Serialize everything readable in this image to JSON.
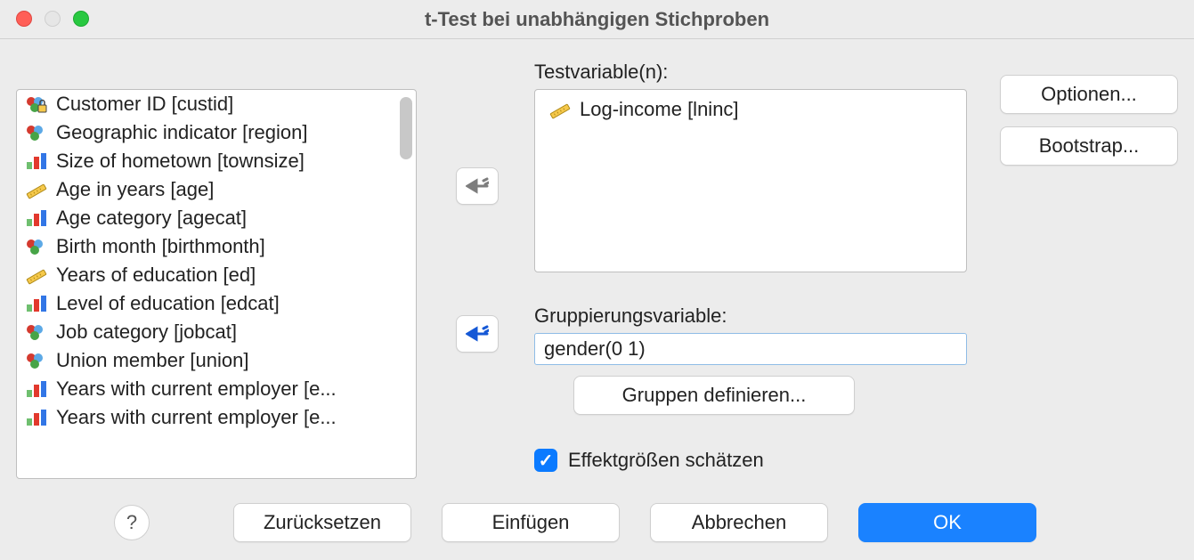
{
  "window": {
    "title": "t-Test bei unabhängigen Stichproben",
    "traffic_colors": {
      "close": "#ff5f57",
      "disabled": "#e6e6e6",
      "zoom": "#28c840"
    }
  },
  "labels": {
    "test_variables": "Testvariable(n):",
    "grouping_variable": "Gruppierungsvariable:",
    "effect_sizes": "Effektgrößen schätzen"
  },
  "source_variables": [
    {
      "icon": "nominal-locked",
      "label": "Customer ID [custid]"
    },
    {
      "icon": "nominal",
      "label": "Geographic indicator [region]"
    },
    {
      "icon": "ordinal",
      "label": "Size of hometown [townsize]"
    },
    {
      "icon": "scale",
      "label": "Age in years [age]"
    },
    {
      "icon": "ordinal",
      "label": "Age category [agecat]"
    },
    {
      "icon": "nominal",
      "label": "Birth month [birthmonth]"
    },
    {
      "icon": "scale",
      "label": "Years of education [ed]"
    },
    {
      "icon": "ordinal",
      "label": "Level of education [edcat]"
    },
    {
      "icon": "nominal",
      "label": "Job category [jobcat]"
    },
    {
      "icon": "nominal",
      "label": "Union member [union]"
    },
    {
      "icon": "ordinal",
      "label": "Years with current employer [e..."
    },
    {
      "icon": "ordinal",
      "label": "Years with current employer [e..."
    }
  ],
  "test_variables": [
    {
      "icon": "scale",
      "label": "Log-income [lninc]"
    }
  ],
  "grouping": {
    "value": "gender(0 1)",
    "define_button": "Gruppen definieren..."
  },
  "effect_sizes_checked": true,
  "side_buttons": {
    "options": "Optionen...",
    "bootstrap": "Bootstrap..."
  },
  "bottom_buttons": {
    "help": "?",
    "reset": "Zurücksetzen",
    "paste": "Einfügen",
    "cancel": "Abbrechen",
    "ok": "OK"
  },
  "arrows": {
    "to_test_color": "#7d7d7d",
    "to_group_color": "#1558d6"
  },
  "icon_palette": {
    "nominal": {
      "c1": "#d43a2f",
      "c2": "#47a447",
      "c3": "#f6c94b"
    },
    "ordinal": {
      "b1": "#6fbf6f",
      "b2": "#e2392d",
      "b3": "#3276e6"
    },
    "scale": {
      "body": "#f6c94b",
      "edge": "#b08b1a"
    },
    "lock": "#444"
  },
  "style": {
    "background": "#ececec",
    "panel_bg": "#ffffff",
    "border": "#bfbfbf",
    "focus_border": "#8fbce6",
    "primary": "#1a82ff",
    "text": "#222222"
  }
}
